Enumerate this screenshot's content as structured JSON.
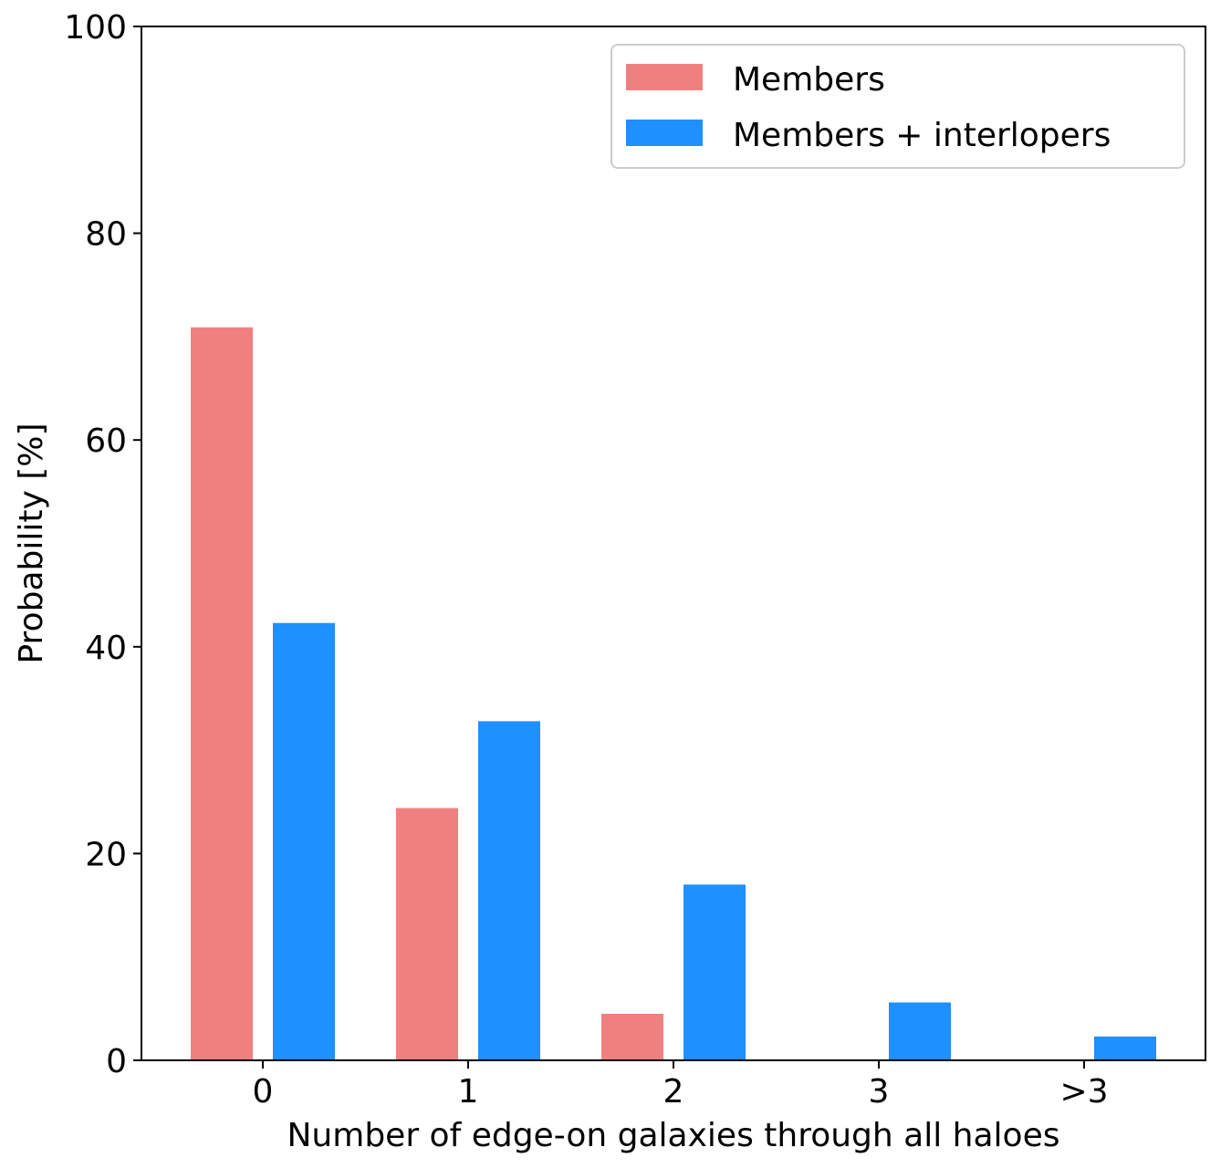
{
  "chart_data": {
    "type": "bar",
    "title": "",
    "xlabel": "Number of edge-on galaxies through all haloes",
    "ylabel": "Probability [%]",
    "categories": [
      "0",
      "1",
      "2",
      "3",
      ">3"
    ],
    "ylim": [
      0,
      100
    ],
    "yticks": [
      "0",
      "20",
      "40",
      "60",
      "80",
      "100"
    ],
    "grid": false,
    "legend_position": "top-right",
    "series": [
      {
        "name": "Members",
        "color": "#F08080",
        "values": [
          70.9,
          24.4,
          4.5,
          0,
          0
        ]
      },
      {
        "name": "Members + interlopers",
        "color": "#1E90FF",
        "values": [
          42.3,
          32.8,
          17.0,
          5.6,
          2.3
        ]
      }
    ]
  }
}
